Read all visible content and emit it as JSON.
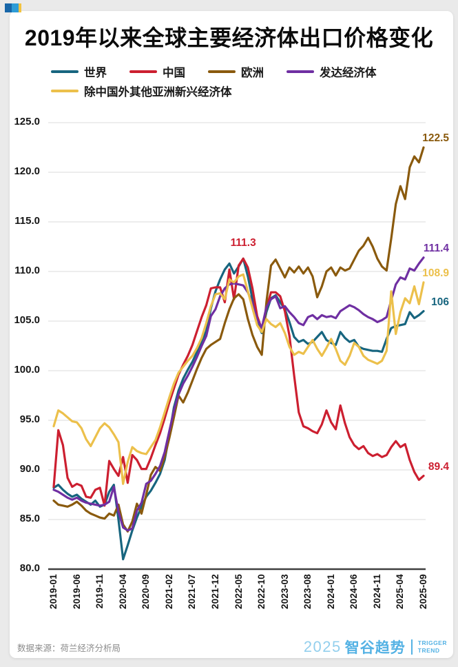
{
  "page": {
    "background_color": "#EAEAEA",
    "card_color": "#FFFFFF",
    "corner_logo_colors": [
      "#1766A8",
      "#2E9CD6",
      "#F3C33F"
    ]
  },
  "title": "2019年以来全球主要经济体出口价格变化",
  "legend": {
    "row1": [
      "世界",
      "中国",
      "欧洲",
      "发达经济体"
    ],
    "row2": [
      "除中国外其他亚洲新兴经济体"
    ]
  },
  "chart_data": {
    "type": "line",
    "title": "2019年以来全球主要经济体出口价格变化",
    "x_start": "2019-01",
    "x_end": "2025-09",
    "x_frequency": "monthly",
    "x_tick_labels": [
      "2019-01",
      "2019-06",
      "2019-11",
      "2020-04",
      "2020-09",
      "2021-02",
      "2021-07",
      "2021-12",
      "2022-05",
      "2022-10",
      "2023-03",
      "2023-08",
      "2024-01",
      "2024-06",
      "2024-11",
      "2025-04",
      "2025-09"
    ],
    "ylim": [
      80,
      125
    ],
    "y_tick_labels": [
      "125.0",
      "120.0",
      "115.0",
      "110.0",
      "105.0",
      "100.0",
      "95.0",
      "90.0",
      "85.0",
      "80.0"
    ],
    "grid": "horizontal",
    "legend_position": "top",
    "series": [
      {
        "name": "世界",
        "color": "#17657F",
        "values": [
          88.2,
          88.5,
          88.0,
          87.6,
          87.3,
          87.5,
          87.1,
          86.8,
          86.5,
          86.9,
          86.3,
          86.5,
          87.8,
          88.5,
          85.0,
          81.0,
          82.4,
          83.9,
          85.2,
          86.3,
          87.3,
          87.9,
          88.7,
          89.6,
          91.0,
          93.5,
          96.3,
          98.0,
          99.2,
          100.1,
          100.9,
          101.9,
          103.0,
          104.0,
          106.3,
          108.0,
          109.2,
          110.2,
          110.8,
          109.8,
          110.5,
          111.3,
          109.5,
          107.2,
          104.8,
          103.8,
          105.9,
          107.3,
          107.6,
          106.9,
          106.2,
          104.9,
          103.4,
          102.9,
          103.1,
          102.7,
          102.9,
          103.4,
          103.9,
          103.1,
          102.8,
          102.6,
          103.9,
          103.3,
          102.9,
          103.1,
          102.4,
          102.2,
          102.1,
          102.0,
          102.0,
          101.9,
          103.2,
          104.3,
          104.5,
          104.6,
          104.7,
          105.9,
          105.3,
          105.6,
          106.0
        ]
      },
      {
        "name": "中国",
        "color": "#CC1F30",
        "values": [
          88.3,
          94.0,
          92.5,
          89.2,
          88.3,
          88.6,
          88.4,
          87.3,
          87.2,
          88.0,
          88.2,
          86.4,
          90.9,
          90.1,
          89.4,
          91.3,
          88.7,
          91.5,
          91.0,
          90.1,
          90.1,
          91.2,
          92.5,
          93.7,
          95.2,
          96.8,
          98.2,
          99.6,
          100.6,
          101.5,
          102.6,
          104.0,
          105.4,
          106.6,
          108.3,
          108.4,
          108.4,
          106.9,
          110.2,
          107.2,
          110.6,
          111.3,
          110.4,
          108.3,
          105.5,
          104.2,
          106.3,
          107.9,
          107.9,
          107.5,
          106.0,
          103.5,
          99.5,
          95.8,
          94.4,
          94.2,
          93.9,
          93.7,
          94.6,
          96.0,
          94.8,
          94.1,
          96.5,
          94.7,
          93.3,
          92.5,
          92.1,
          92.4,
          91.7,
          91.4,
          91.6,
          91.3,
          91.5,
          92.3,
          92.9,
          92.3,
          92.6,
          91.0,
          89.8,
          89.0,
          89.4
        ]
      },
      {
        "name": "欧洲",
        "color": "#8A5A0D",
        "values": [
          86.9,
          86.5,
          86.4,
          86.3,
          86.5,
          86.8,
          86.4,
          85.9,
          85.6,
          85.4,
          85.2,
          85.1,
          85.6,
          85.4,
          86.5,
          84.5,
          83.8,
          84.8,
          86.6,
          85.6,
          87.5,
          89.5,
          90.3,
          89.9,
          91.3,
          93.2,
          95.3,
          97.5,
          96.8,
          97.8,
          99.0,
          100.2,
          101.3,
          102.2,
          102.6,
          102.9,
          103.2,
          104.8,
          106.2,
          107.3,
          107.7,
          107.2,
          105.2,
          103.6,
          102.4,
          101.6,
          106.9,
          110.6,
          111.2,
          110.3,
          109.4,
          110.4,
          109.9,
          110.5,
          109.8,
          110.4,
          109.5,
          107.4,
          108.5,
          110.0,
          110.4,
          109.6,
          110.4,
          110.1,
          110.3,
          111.2,
          112.1,
          112.6,
          113.4,
          112.5,
          111.3,
          110.5,
          110.1,
          113.3,
          116.8,
          118.6,
          117.3,
          120.5,
          121.6,
          121.0,
          122.5
        ]
      },
      {
        "name": "发达经济体",
        "color": "#6F2FA2",
        "values": [
          88.0,
          87.8,
          87.5,
          87.2,
          87.0,
          87.2,
          86.9,
          86.7,
          86.6,
          86.5,
          86.4,
          86.5,
          86.8,
          88.3,
          85.8,
          84.2,
          83.9,
          84.1,
          85.9,
          86.7,
          88.6,
          88.9,
          89.6,
          90.4,
          91.8,
          93.9,
          96.0,
          97.6,
          98.7,
          99.5,
          100.4,
          101.4,
          102.5,
          103.5,
          105.5,
          106.2,
          107.5,
          108.3,
          108.7,
          108.8,
          108.7,
          108.6,
          107.9,
          106.8,
          105.2,
          104.3,
          106.4,
          107.2,
          107.5,
          106.3,
          106.5,
          105.9,
          105.4,
          104.8,
          104.6,
          105.4,
          105.6,
          105.2,
          105.6,
          105.4,
          105.5,
          105.3,
          106.0,
          106.3,
          106.6,
          106.4,
          106.1,
          105.7,
          105.4,
          105.2,
          104.9,
          105.1,
          105.4,
          107.1,
          108.7,
          109.4,
          109.2,
          110.3,
          110.1,
          110.8,
          111.4
        ]
      },
      {
        "name": "除中国外其他亚洲新兴经济体",
        "color": "#ECC04B",
        "values": [
          94.4,
          96.0,
          95.7,
          95.3,
          94.9,
          94.8,
          94.2,
          93.1,
          92.4,
          93.3,
          94.2,
          94.7,
          94.3,
          93.6,
          92.8,
          88.6,
          90.8,
          92.3,
          91.9,
          91.7,
          91.6,
          92.3,
          93.0,
          94.3,
          95.8,
          97.3,
          98.7,
          99.8,
          100.4,
          101.0,
          101.5,
          102.3,
          103.3,
          104.8,
          106.5,
          107.7,
          107.8,
          107.2,
          109.2,
          108.9,
          109.5,
          109.7,
          108.0,
          106.3,
          104.6,
          103.9,
          105.2,
          104.7,
          104.4,
          104.8,
          103.8,
          102.4,
          101.6,
          101.9,
          101.7,
          102.4,
          103.1,
          102.2,
          101.5,
          102.3,
          103.2,
          102.2,
          101.0,
          100.6,
          101.5,
          102.8,
          102.4,
          101.5,
          101.1,
          100.9,
          100.7,
          101.0,
          102.0,
          108.0,
          103.7,
          105.9,
          107.3,
          106.8,
          108.5,
          106.7,
          108.9
        ]
      }
    ],
    "annotations": [
      {
        "text": "111.3",
        "series": "中国",
        "month": "2022-06",
        "index": 41,
        "placement": "above"
      },
      {
        "text": "122.5",
        "series": "欧洲",
        "month": "2025-09",
        "index": 80,
        "placement": "end"
      },
      {
        "text": "111.4",
        "series": "发达经济体",
        "month": "2025-09",
        "index": 80,
        "placement": "end"
      },
      {
        "text": "108.9",
        "series": "除中国外其他亚洲新兴经济体",
        "month": "2025-09",
        "index": 80,
        "placement": "end"
      },
      {
        "text": "106",
        "series": "世界",
        "month": "2025-09",
        "index": 80,
        "placement": "end"
      },
      {
        "text": "89.4",
        "series": "中国",
        "month": "2025-09",
        "index": 80,
        "placement": "end"
      }
    ]
  },
  "footer": {
    "source": "数据来源：荷兰经济分析局",
    "brand_year": "2025",
    "brand_name": "智谷趋势",
    "brand_en_line1": "TRIGGER",
    "brand_en_line2": "TREND"
  }
}
